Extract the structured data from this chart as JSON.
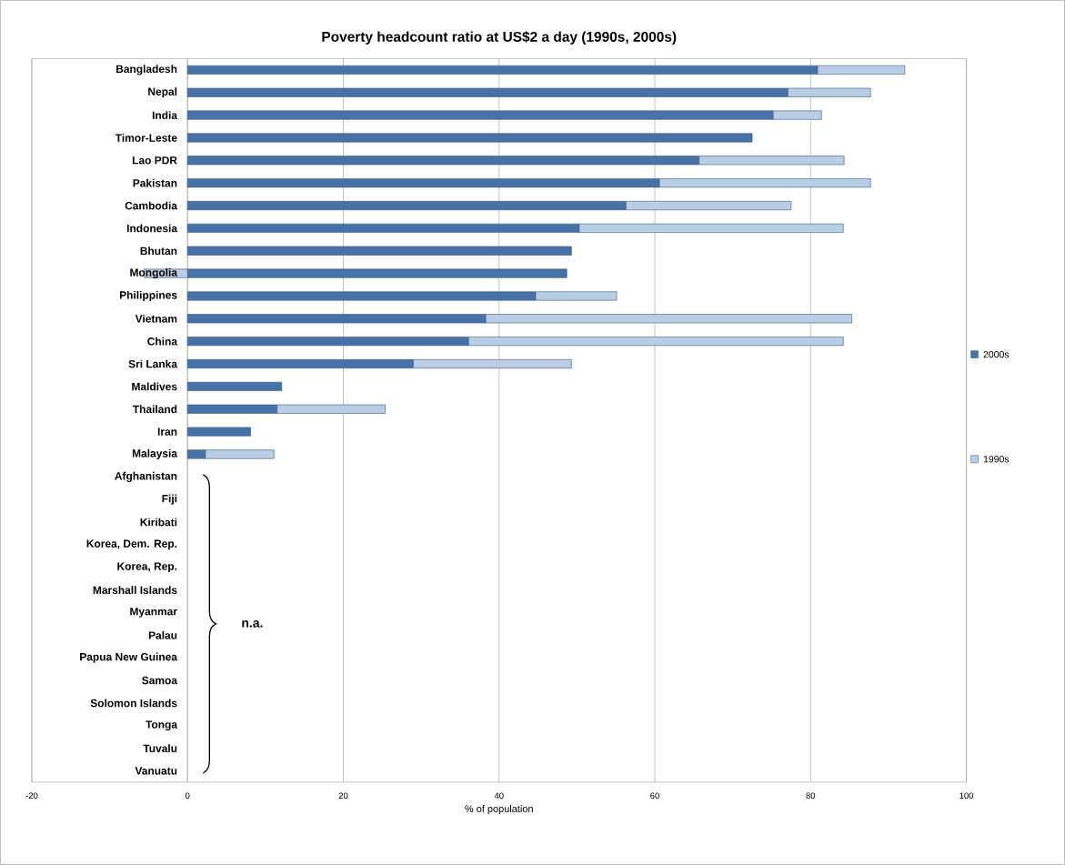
{
  "chart_data": {
    "type": "bar",
    "orientation": "horizontal",
    "stacked": true,
    "title": "Poverty headcount ratio at US$2 a day (1990s, 2000s)",
    "xlabel": "% of population",
    "categories": [
      "Bangladesh",
      "Nepal",
      "India",
      "Timor-Leste",
      "Lao PDR",
      "Pakistan",
      "Cambodia",
      "Indonesia",
      "Bhutan",
      "Mongolia",
      "Philippines",
      "Vietnam",
      "China",
      "Sri Lanka",
      "Maldives",
      "Thailand",
      "Iran",
      "Malaysia",
      "Afghanistan",
      "Fiji",
      "Kiribati",
      "Korea, Dem. Rep.",
      "Korea, Rep.",
      "Marshall Islands",
      "Myanmar",
      "Palau",
      "Papua New Guinea",
      "Samoa",
      "Solomon Islands",
      "Tonga",
      "Tuvalu",
      "Vanuatu"
    ],
    "series": [
      {
        "name": "2000s",
        "color": "#4672a8",
        "values": [
          80.9,
          77.1,
          75.2,
          72.5,
          65.7,
          60.6,
          56.3,
          50.3,
          49.3,
          48.7,
          44.7,
          38.3,
          36.1,
          29.0,
          12.1,
          11.5,
          8.1,
          2.3,
          null,
          null,
          null,
          null,
          null,
          null,
          null,
          null,
          null,
          null,
          null,
          null,
          null,
          null
        ]
      },
      {
        "name": "1990s",
        "color": "#b9cde5",
        "values": [
          11.2,
          10.6,
          6.2,
          null,
          18.6,
          27.1,
          21.2,
          33.9,
          null,
          -5.6,
          10.4,
          47.0,
          48.1,
          20.3,
          null,
          13.9,
          null,
          8.8,
          null,
          null,
          null,
          null,
          null,
          null,
          null,
          null,
          null,
          null,
          null,
          null,
          null,
          null
        ]
      }
    ],
    "xlim": [
      -20,
      100
    ],
    "xticks": [
      -20,
      0,
      20,
      40,
      60,
      80,
      100
    ],
    "grid": "x",
    "legend": "right",
    "annotations": [
      "n.a."
    ]
  }
}
